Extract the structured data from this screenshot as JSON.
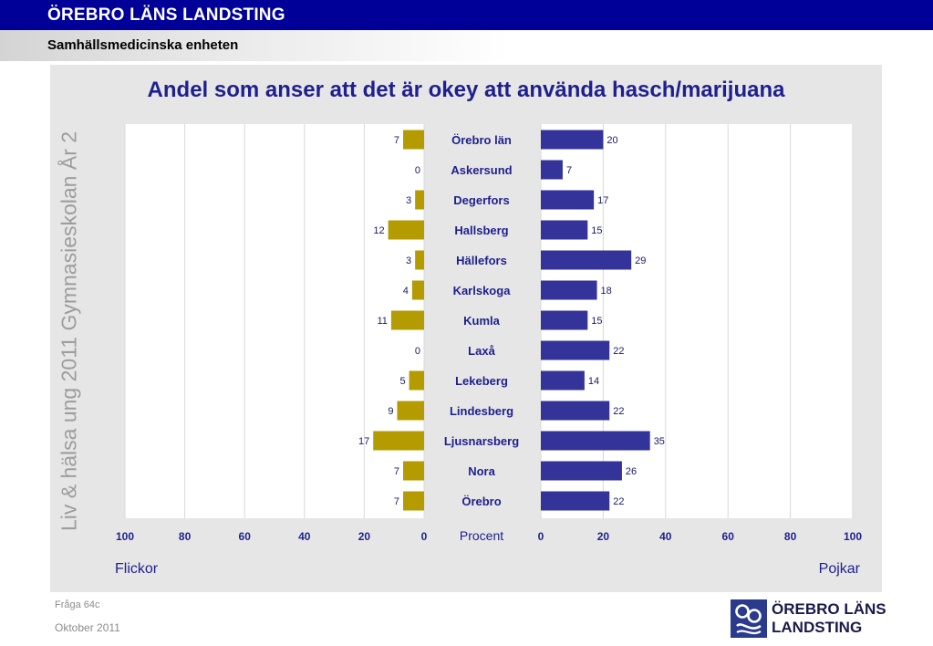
{
  "header": {
    "org_title": "ÖREBRO LÄNS LANDSTING",
    "unit_title": "Samhällsmedicinska enheten"
  },
  "side_text": "Liv & hälsa ung 2011 Gymnasieskolan År 2",
  "footer": {
    "question": "Fråga 64c",
    "date": "Oktober 2011"
  },
  "logo": {
    "line1": "ÖREBRO LÄNS",
    "line2": "LANDSTING",
    "icon": "landsting-logo-icon"
  },
  "colors": {
    "header_bg": "#000099",
    "girls_bar": "#b39b00",
    "boys_bar": "#333399",
    "title": "#1f1f8f",
    "panel_bg": "#e6e6e6"
  },
  "chart_data": {
    "type": "bar",
    "orientation": "horizontal",
    "layout": "butterfly",
    "title": "Andel som anser att det är okey att använda hasch/marijuana",
    "xlabel": "Procent",
    "categories": [
      "Örebro län",
      "Askersund",
      "Degerfors",
      "Hallsberg",
      "Hällefors",
      "Karlskoga",
      "Kumla",
      "Laxå",
      "Lekeberg",
      "Lindesberg",
      "Ljusnarsberg",
      "Nora",
      "Örebro"
    ],
    "series": [
      {
        "name": "Flickor",
        "side": "left",
        "values": [
          7,
          0,
          3,
          12,
          3,
          4,
          11,
          0,
          5,
          9,
          17,
          7,
          7
        ]
      },
      {
        "name": "Pojkar",
        "side": "right",
        "values": [
          20,
          7,
          17,
          15,
          29,
          18,
          15,
          22,
          14,
          22,
          35,
          26,
          22
        ]
      }
    ],
    "xlim": [
      0,
      100
    ],
    "ticks": [
      "0",
      "20",
      "40",
      "60",
      "80",
      "100"
    ],
    "left_ticks": [
      "100",
      "80",
      "60",
      "40",
      "20",
      "0"
    ],
    "grid": true,
    "legend": "bottom-left / bottom-right labels"
  }
}
